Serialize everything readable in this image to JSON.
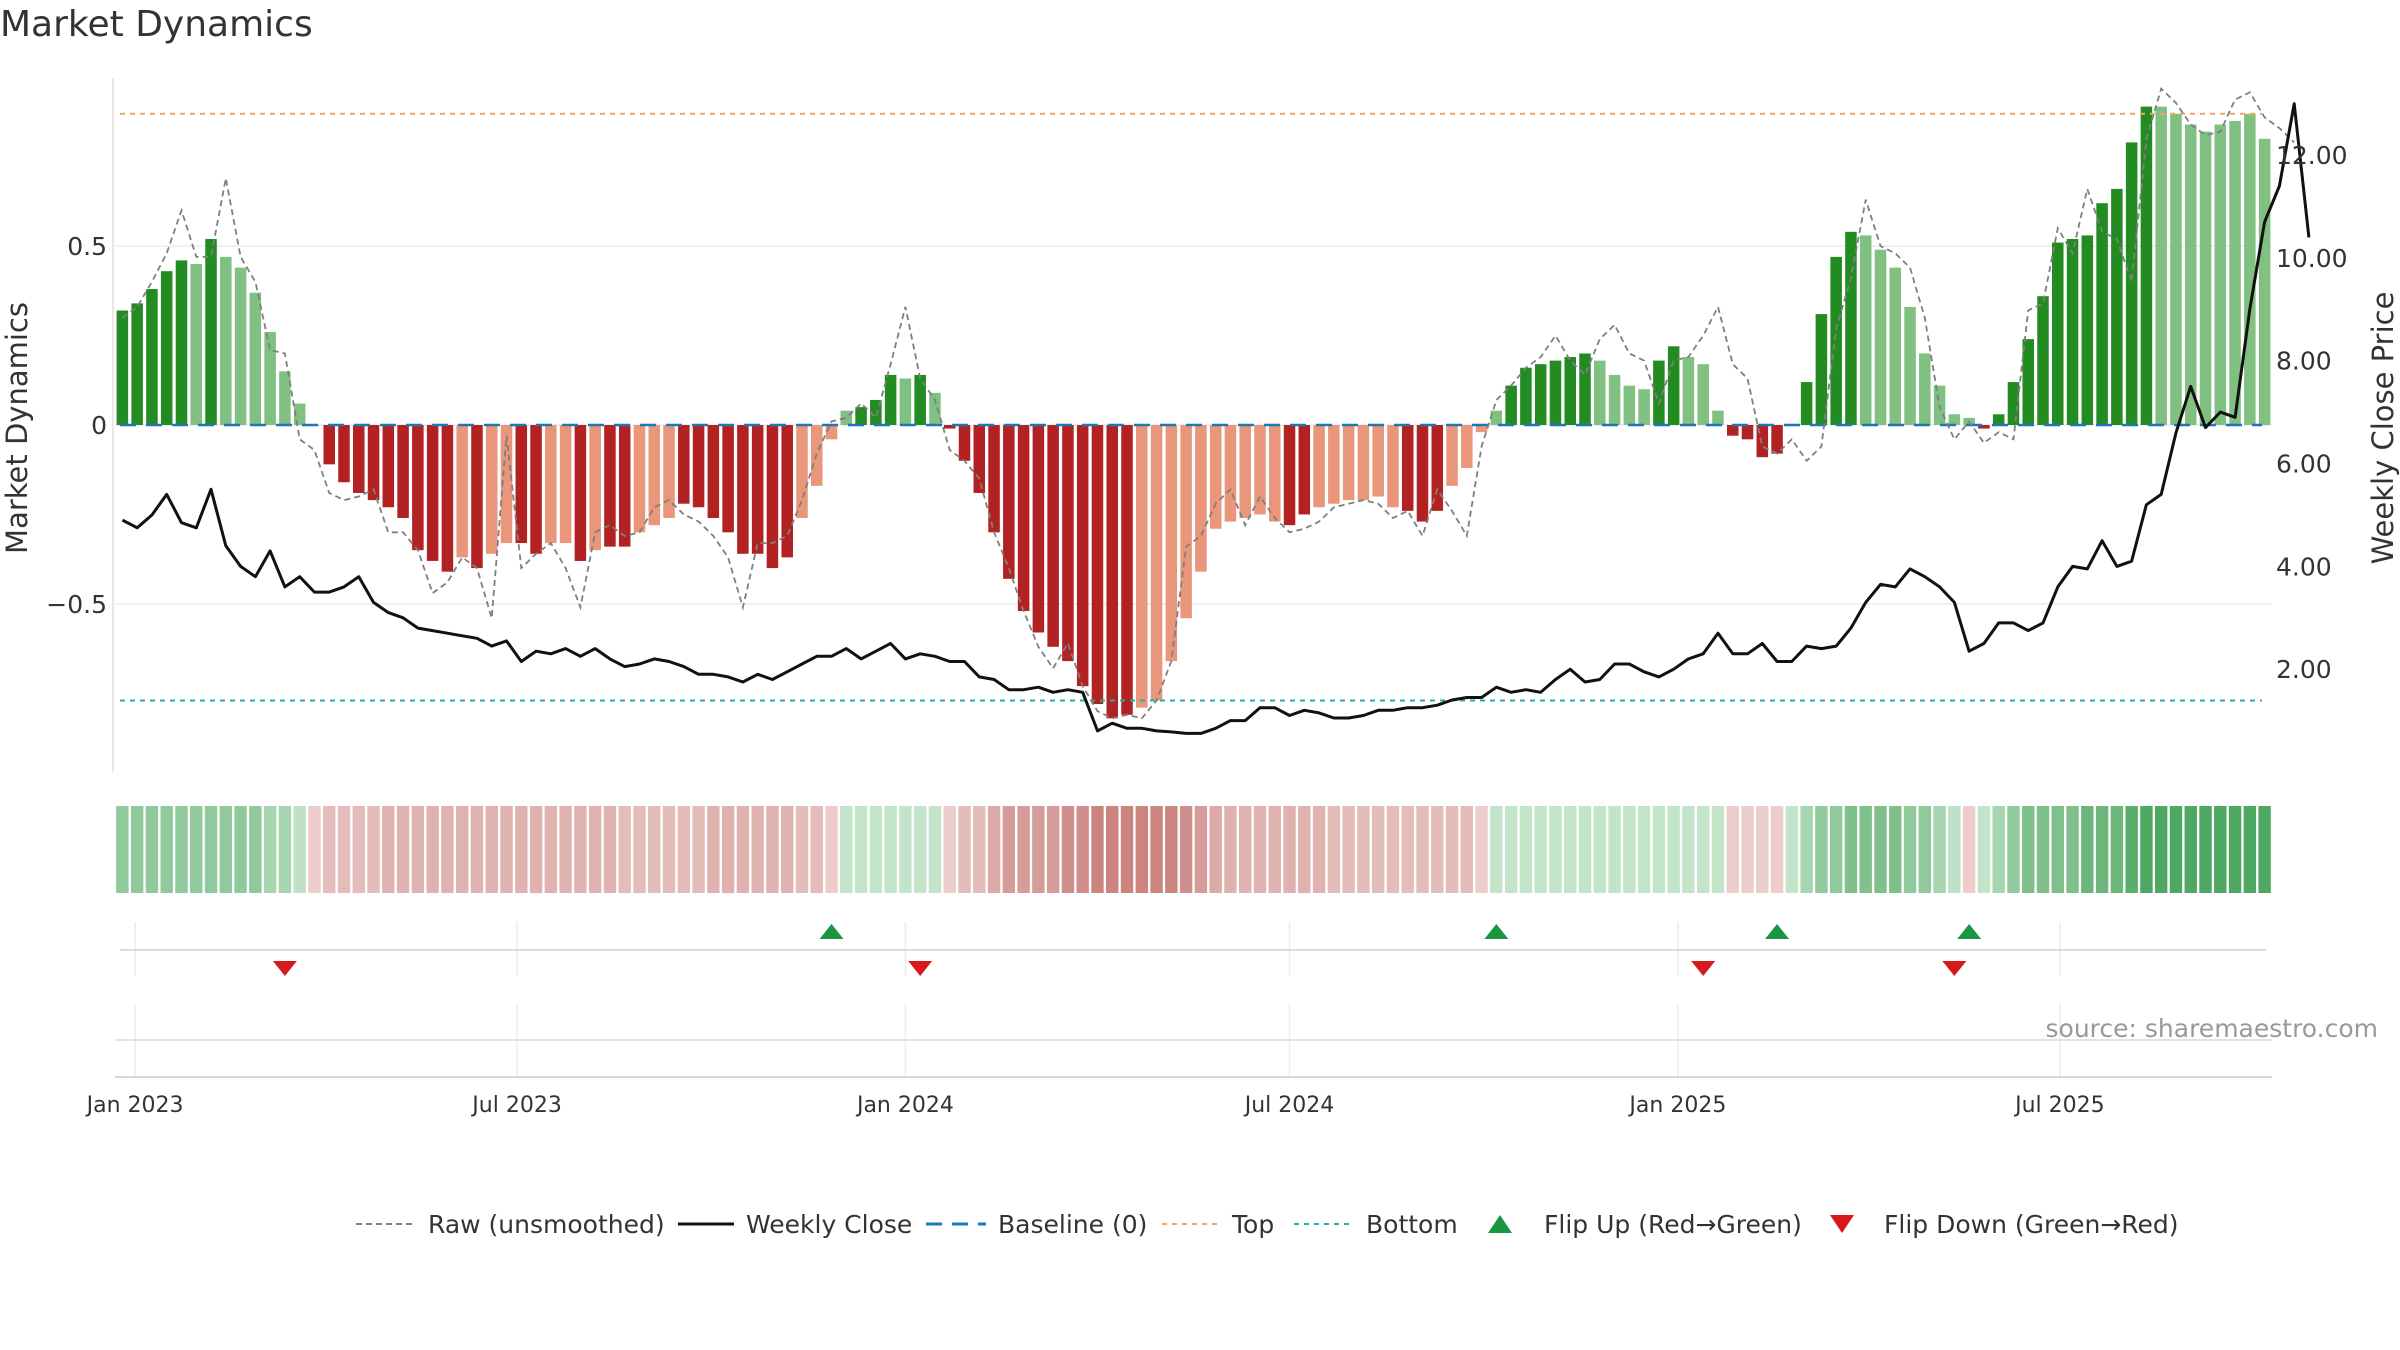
{
  "chart_data": {
    "type": "bar",
    "title": "Market Dynamics",
    "ylabel": "Market Dynamics",
    "y2label": "Weekly Close Price",
    "ylim": [
      -0.97,
      0.97
    ],
    "y2lim": [
      0.0,
      13.5
    ],
    "yticks": [
      {
        "value": 0.5,
        "label": "0.5"
      },
      {
        "value": 0,
        "label": "0"
      },
      {
        "value": -0.5,
        "label": "−0.5"
      }
    ],
    "y2ticks": [
      {
        "value": 12,
        "label": "12.00"
      },
      {
        "value": 10,
        "label": "10.00"
      },
      {
        "value": 8,
        "label": "8.00"
      },
      {
        "value": 6,
        "label": "6.00"
      },
      {
        "value": 4,
        "label": "4.00"
      },
      {
        "value": 2,
        "label": "2.00"
      }
    ],
    "start_date": "2022-12-26",
    "xticks": [
      {
        "date": "2023-01-01",
        "label": "Jan 2023"
      },
      {
        "date": "2023-07-01",
        "label": "Jul 2023"
      },
      {
        "date": "2024-01-01",
        "label": "Jan 2024"
      },
      {
        "date": "2024-07-01",
        "label": "Jul 2024"
      },
      {
        "date": "2025-01-01",
        "label": "Jan 2025"
      },
      {
        "date": "2025-07-01",
        "label": "Jul 2025"
      }
    ],
    "top_line": 0.87,
    "bottom_line": -0.77,
    "baseline": 0,
    "dynamics": [
      0.32,
      0.34,
      0.38,
      0.43,
      0.46,
      0.45,
      0.52,
      0.47,
      0.44,
      0.37,
      0.26,
      0.15,
      0.06,
      0.0,
      -0.11,
      -0.16,
      -0.19,
      -0.21,
      -0.23,
      -0.26,
      -0.35,
      -0.38,
      -0.41,
      -0.37,
      -0.4,
      -0.36,
      -0.33,
      -0.33,
      -0.36,
      -0.33,
      -0.33,
      -0.38,
      -0.35,
      -0.34,
      -0.34,
      -0.3,
      -0.28,
      -0.26,
      -0.22,
      -0.23,
      -0.26,
      -0.3,
      -0.36,
      -0.36,
      -0.4,
      -0.37,
      -0.26,
      -0.17,
      -0.04,
      0.04,
      0.05,
      0.07,
      0.14,
      0.13,
      0.14,
      0.09,
      -0.01,
      -0.1,
      -0.19,
      -0.3,
      -0.43,
      -0.52,
      -0.58,
      -0.62,
      -0.66,
      -0.73,
      -0.78,
      -0.82,
      -0.81,
      -0.79,
      -0.77,
      -0.66,
      -0.54,
      -0.41,
      -0.29,
      -0.27,
      -0.26,
      -0.25,
      -0.27,
      -0.28,
      -0.25,
      -0.23,
      -0.22,
      -0.21,
      -0.21,
      -0.2,
      -0.23,
      -0.24,
      -0.27,
      -0.24,
      -0.17,
      -0.12,
      -0.02,
      0.04,
      0.11,
      0.16,
      0.17,
      0.18,
      0.19,
      0.2,
      0.18,
      0.14,
      0.11,
      0.1,
      0.18,
      0.22,
      0.19,
      0.17,
      0.04,
      -0.03,
      -0.04,
      -0.09,
      -0.08,
      0.0,
      0.12,
      0.31,
      0.47,
      0.54,
      0.53,
      0.49,
      0.44,
      0.33,
      0.2,
      0.11,
      0.03,
      0.02,
      -0.01,
      0.03,
      0.12,
      0.24,
      0.36,
      0.51,
      0.52,
      0.53,
      0.62,
      0.66,
      0.79,
      0.89,
      0.89,
      0.87,
      0.84,
      0.82,
      0.84,
      0.85,
      0.87,
      0.8
    ],
    "dynamics_shade": [
      1,
      1,
      1,
      1,
      1,
      0,
      1,
      0,
      0,
      0,
      0,
      0,
      0,
      0,
      1,
      1,
      1,
      1,
      1,
      1,
      1,
      1,
      1,
      0,
      1,
      0,
      0,
      1,
      1,
      0,
      0,
      1,
      0,
      1,
      1,
      0,
      0,
      0,
      1,
      1,
      1,
      1,
      1,
      1,
      1,
      1,
      0,
      0,
      0,
      0,
      1,
      1,
      1,
      0,
      1,
      0,
      1,
      1,
      1,
      1,
      1,
      1,
      1,
      1,
      1,
      1,
      1,
      1,
      1,
      0,
      0,
      0,
      0,
      0,
      0,
      0,
      0,
      0,
      0,
      1,
      1,
      0,
      0,
      0,
      0,
      0,
      0,
      1,
      1,
      1,
      0,
      0,
      0,
      0,
      1,
      1,
      1,
      1,
      1,
      1,
      0,
      0,
      0,
      0,
      1,
      1,
      0,
      0,
      0,
      1,
      1,
      1,
      1,
      0,
      1,
      1,
      1,
      1,
      0,
      0,
      0,
      0,
      0,
      0,
      0,
      0,
      1,
      1,
      1,
      1,
      1,
      1,
      1,
      1,
      1,
      1,
      1,
      1,
      0,
      0,
      0,
      0,
      0,
      0,
      0
    ],
    "raw": [
      0.3,
      0.33,
      0.4,
      0.48,
      0.6,
      0.47,
      0.47,
      0.69,
      0.47,
      0.4,
      0.21,
      0.2,
      -0.04,
      -0.07,
      -0.19,
      -0.21,
      -0.2,
      -0.18,
      -0.3,
      -0.3,
      -0.35,
      -0.47,
      -0.44,
      -0.37,
      -0.4,
      -0.54,
      -0.03,
      -0.4,
      -0.36,
      -0.33,
      -0.4,
      -0.51,
      -0.3,
      -0.28,
      -0.31,
      -0.3,
      -0.23,
      -0.21,
      -0.25,
      -0.27,
      -0.31,
      -0.37,
      -0.51,
      -0.33,
      -0.33,
      -0.31,
      -0.21,
      -0.08,
      0.01,
      0.02,
      0.06,
      0.02,
      0.17,
      0.33,
      0.13,
      0.07,
      -0.07,
      -0.1,
      -0.15,
      -0.3,
      -0.4,
      -0.52,
      -0.62,
      -0.68,
      -0.61,
      -0.73,
      -0.8,
      -0.82,
      -0.81,
      -0.82,
      -0.77,
      -0.66,
      -0.34,
      -0.31,
      -0.22,
      -0.18,
      -0.28,
      -0.2,
      -0.26,
      -0.3,
      -0.29,
      -0.27,
      -0.23,
      -0.22,
      -0.21,
      -0.22,
      -0.26,
      -0.24,
      -0.31,
      -0.18,
      -0.24,
      -0.31,
      -0.06,
      0.07,
      0.11,
      0.16,
      0.19,
      0.25,
      0.18,
      0.14,
      0.24,
      0.28,
      0.2,
      0.18,
      0.06,
      0.18,
      0.19,
      0.25,
      0.33,
      0.17,
      0.13,
      -0.06,
      -0.08,
      -0.04,
      -0.1,
      -0.06,
      0.27,
      0.41,
      0.63,
      0.5,
      0.48,
      0.44,
      0.3,
      0.05,
      -0.04,
      0.01,
      -0.05,
      -0.02,
      -0.04,
      0.32,
      0.34,
      0.55,
      0.48,
      0.66,
      0.54,
      0.52,
      0.4,
      0.8,
      0.94,
      0.9,
      0.84,
      0.81,
      0.82,
      0.91,
      0.93,
      0.86,
      0.83,
      0.79
    ],
    "close": [
      4.9,
      4.75,
      5.0,
      5.4,
      4.85,
      4.75,
      5.5,
      4.4,
      4.0,
      3.8,
      4.3,
      3.6,
      3.8,
      3.5,
      3.5,
      3.6,
      3.8,
      3.3,
      3.1,
      3.0,
      2.8,
      2.75,
      2.7,
      2.65,
      2.6,
      2.45,
      2.55,
      2.15,
      2.35,
      2.3,
      2.4,
      2.25,
      2.4,
      2.2,
      2.05,
      2.1,
      2.2,
      2.15,
      2.05,
      1.9,
      1.9,
      1.85,
      1.75,
      1.9,
      1.8,
      1.95,
      2.1,
      2.25,
      2.25,
      2.4,
      2.2,
      2.35,
      2.5,
      2.2,
      2.3,
      2.25,
      2.15,
      2.15,
      1.85,
      1.8,
      1.6,
      1.6,
      1.65,
      1.55,
      1.6,
      1.55,
      0.8,
      0.95,
      0.85,
      0.85,
      0.8,
      0.78,
      0.75,
      0.75,
      0.85,
      1.0,
      1.0,
      1.25,
      1.25,
      1.1,
      1.2,
      1.15,
      1.05,
      1.05,
      1.1,
      1.2,
      1.2,
      1.25,
      1.25,
      1.3,
      1.4,
      1.45,
      1.45,
      1.65,
      1.55,
      1.6,
      1.55,
      1.8,
      2.0,
      1.75,
      1.8,
      2.1,
      2.1,
      1.95,
      1.85,
      2.0,
      2.2,
      2.3,
      2.7,
      2.3,
      2.3,
      2.5,
      2.15,
      2.15,
      2.45,
      2.4,
      2.45,
      2.8,
      3.3,
      3.65,
      3.6,
      3.95,
      3.8,
      3.6,
      3.3,
      2.35,
      2.5,
      2.9,
      2.9,
      2.75,
      2.9,
      3.6,
      4.0,
      3.95,
      4.5,
      4.0,
      4.1,
      5.2,
      5.4,
      6.6,
      7.5,
      6.7,
      7.0,
      6.9,
      9.0,
      10.7,
      11.4,
      13.0,
      10.4
    ],
    "regime_colors": [
      "#90c99b",
      "#90c99b",
      "#90c99b",
      "#90c99b",
      "#90c99b",
      "#90c99b",
      "#90c99b",
      "#90c99b",
      "#90c99b",
      "#90c99b",
      "#a6d5b0",
      "#a6d5b0",
      "#bfe2c6",
      "#eccdcb",
      "#e4bcba",
      "#e4bcba",
      "#e4bcba",
      "#e4bcba",
      "#dfb2b0",
      "#dfb2b0",
      "#dfb2b0",
      "#dfb2b0",
      "#dfb2b0",
      "#dfb2b0",
      "#dfb2b0",
      "#dfb2b0",
      "#dfb2b0",
      "#dfb2b0",
      "#dfb2b0",
      "#dfb2b0",
      "#dfb2b0",
      "#dfb2b0",
      "#dfb2b0",
      "#dfb2b0",
      "#e4bcba",
      "#e4bcba",
      "#e4bcba",
      "#e4bcba",
      "#e4bcba",
      "#e4bcba",
      "#dfb2b0",
      "#dfb2b0",
      "#dfb2b0",
      "#dfb2b0",
      "#dfb2b0",
      "#dfb2b0",
      "#e4bcba",
      "#e4bcba",
      "#eccdcb",
      "#c3e4c9",
      "#c3e4c9",
      "#c3e4c9",
      "#c3e4c9",
      "#c3e4c9",
      "#c3e4c9",
      "#c3e4c9",
      "#eccdcb",
      "#e4bcba",
      "#e4bcba",
      "#dcaaa7",
      "#d69c99",
      "#d69c99",
      "#d69c99",
      "#d69c99",
      "#d08f8c",
      "#d08f8c",
      "#cc8480",
      "#cc8480",
      "#cc8480",
      "#cc8480",
      "#cc8480",
      "#cc8480",
      "#d08f8c",
      "#d69c99",
      "#dcaaa7",
      "#dfb2b0",
      "#dfb2b0",
      "#dfb2b0",
      "#dfb2b0",
      "#dfb2b0",
      "#dfb2b0",
      "#dfb2b0",
      "#e4bcba",
      "#e4bcba",
      "#e4bcba",
      "#e4bcba",
      "#e4bcba",
      "#e4bcba",
      "#e4bcba",
      "#e4bcba",
      "#e4bcba",
      "#e4bcba",
      "#eccdcb",
      "#c3e4c9",
      "#c3e4c9",
      "#c3e4c9",
      "#c3e4c9",
      "#c3e4c9",
      "#c3e4c9",
      "#c3e4c9",
      "#c3e4c9",
      "#c3e4c9",
      "#c3e4c9",
      "#c3e4c9",
      "#c3e4c9",
      "#c3e4c9",
      "#c3e4c9",
      "#c3e4c9",
      "#c3e4c9",
      "#eccdcb",
      "#eccdcb",
      "#eccdcb",
      "#eccdcb",
      "#c3e4c9",
      "#a6d5b0",
      "#90c99b",
      "#90c99b",
      "#7fc08c",
      "#7fc08c",
      "#7fc08c",
      "#7fc08c",
      "#90c99b",
      "#90c99b",
      "#a6d5b0",
      "#bfe2c6",
      "#eccdcb",
      "#c3e4c9",
      "#a6d5b0",
      "#90c99b",
      "#7fc08c",
      "#7fc08c",
      "#7fc08c",
      "#7fc08c",
      "#6cb67b",
      "#6cb67b",
      "#6cb67b",
      "#5aad6b",
      "#4ea862",
      "#4ea862",
      "#4ea862",
      "#4ea862",
      "#4ea862",
      "#4ea862",
      "#4ea862",
      "#4ea862",
      "#4ea862"
    ],
    "flip_up_dates": [
      "2023-11-27",
      "2024-10-07",
      "2025-02-17",
      "2025-05-19"
    ],
    "flip_down_dates": [
      "2023-03-13",
      "2024-01-08",
      "2025-01-13",
      "2025-05-12"
    ],
    "legend": [
      {
        "type": "dash-grey",
        "label": "Raw (unsmoothed)"
      },
      {
        "type": "solid-black",
        "label": "Weekly Close"
      },
      {
        "type": "dash-blue",
        "label": "Baseline (0)"
      },
      {
        "type": "dot-orange",
        "label": "Top"
      },
      {
        "type": "dot-teal",
        "label": "Bottom"
      },
      {
        "type": "tri-up",
        "label": "Flip Up (Red→Green)"
      },
      {
        "type": "tri-down",
        "label": "Flip Down (Green→Red)"
      }
    ],
    "colors": {
      "green_strong": "#228b22",
      "green_light": "#80c080",
      "red_strong": "#b22222",
      "red_light": "#e9967a",
      "close_line": "#111111",
      "raw_line": "#7f7f7f",
      "baseline": "#1f77b4",
      "top_line": "#f4a460",
      "bottom_line": "#20b2aa",
      "flip_up": "#1a9641",
      "flip_down": "#d7191c"
    }
  },
  "source": "source: sharemaestro.com"
}
